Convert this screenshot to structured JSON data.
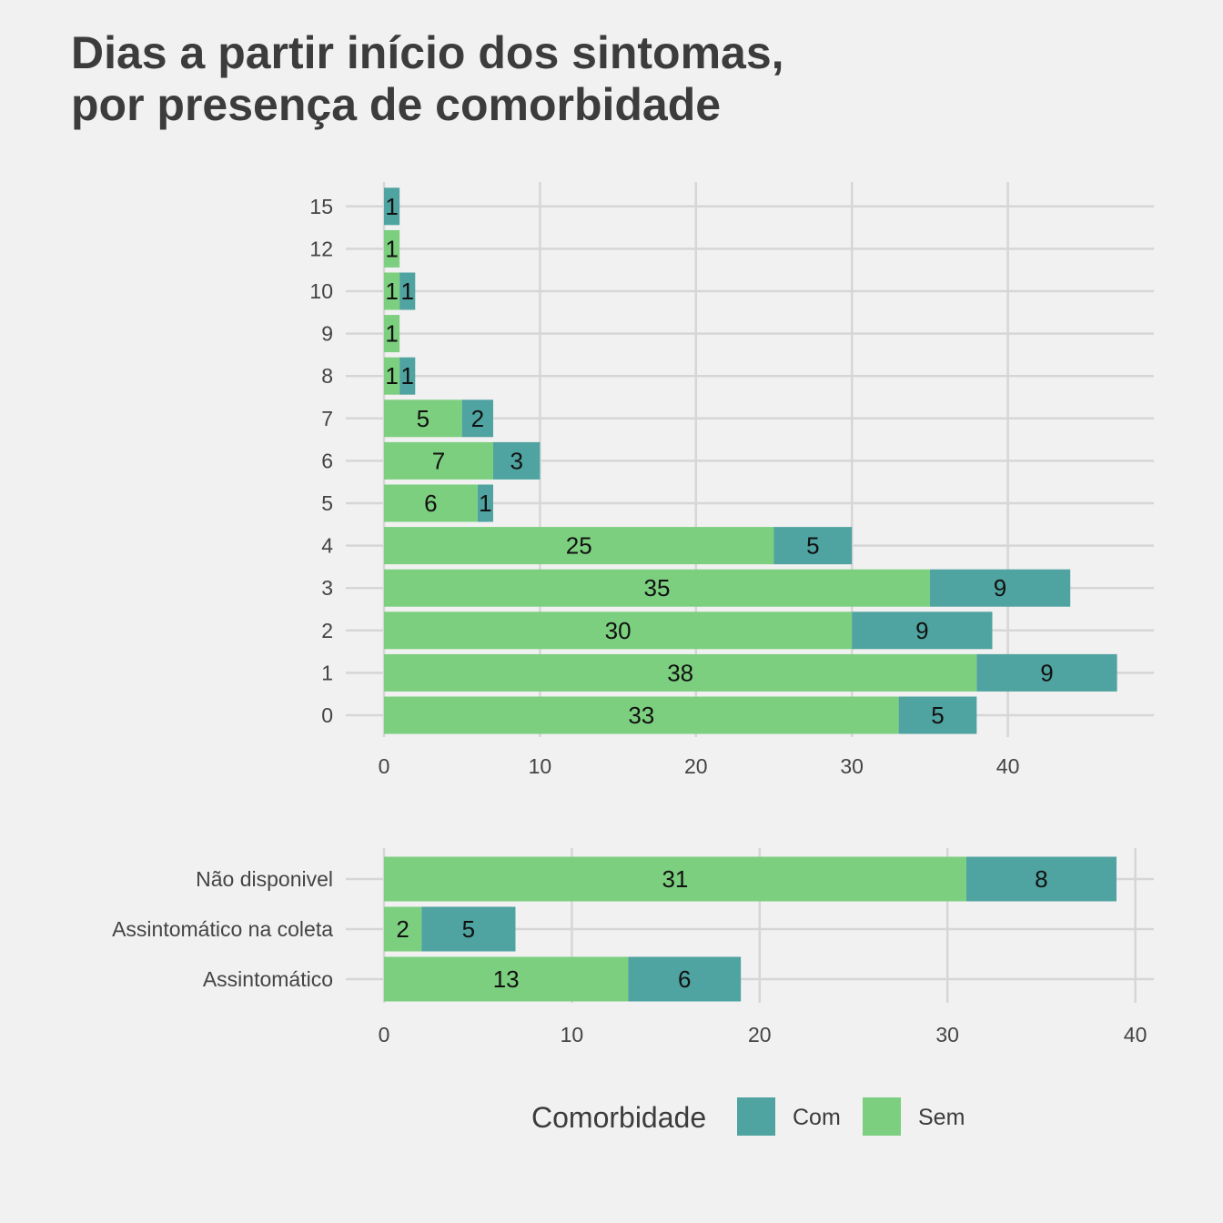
{
  "title_lines": [
    "Dias a partir início dos sintomas,",
    "por presença de comorbidade"
  ],
  "colors": {
    "Com": "#4fa3a0",
    "Sem": "#7ccf7f",
    "grid": "#d6d6d6",
    "background": "#f1f1f1"
  },
  "legend": {
    "title": "Comorbidade",
    "items": [
      "Com",
      "Sem"
    ],
    "placement": "bottom"
  },
  "chart_data": [
    {
      "type": "bar",
      "orientation": "horizontal",
      "stacked": true,
      "categories": [
        "0",
        "1",
        "2",
        "3",
        "4",
        "5",
        "6",
        "7",
        "8",
        "9",
        "10",
        "12",
        "15"
      ],
      "series": [
        {
          "name": "Sem",
          "values": [
            33,
            38,
            30,
            35,
            25,
            6,
            7,
            5,
            1,
            1,
            1,
            1,
            0
          ]
        },
        {
          "name": "Com",
          "values": [
            5,
            9,
            9,
            9,
            5,
            1,
            3,
            2,
            1,
            0,
            1,
            0,
            1
          ]
        }
      ],
      "xlim": [
        0,
        49
      ],
      "xticks": [
        0,
        10,
        20,
        30,
        40
      ],
      "grid": true
    },
    {
      "type": "bar",
      "orientation": "horizontal",
      "stacked": true,
      "categories": [
        "Assintomático",
        "Assintomático na coleta",
        "Não disponivel"
      ],
      "series": [
        {
          "name": "Sem",
          "values": [
            13,
            2,
            31
          ]
        },
        {
          "name": "Com",
          "values": [
            6,
            5,
            8
          ]
        }
      ],
      "xlim": [
        0,
        40.8
      ],
      "xticks": [
        0,
        10,
        20,
        30,
        40
      ],
      "grid": true
    }
  ]
}
